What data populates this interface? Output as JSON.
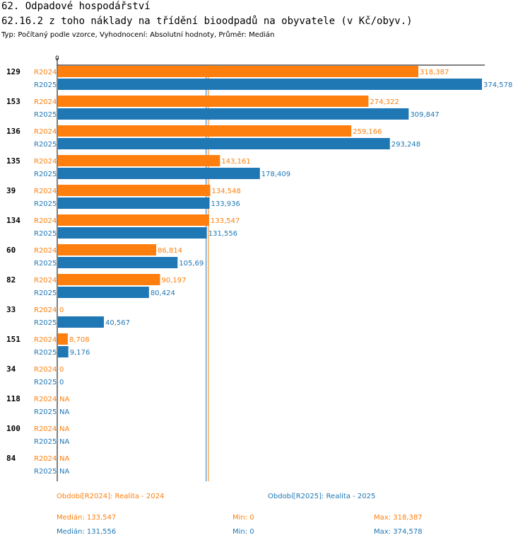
{
  "header": {
    "title": "62. Odpadové hospodářství",
    "subtitle": "62.16.2 z toho náklady na třídění bioodpadů na obyvatele (v Kč/obyv.)",
    "type_line": "Typ: Počítaný podle vzorce, Vyhodnocení: Absolutní hodnoty, Průměr: Medián"
  },
  "colors": {
    "r2024": "#ff7f0e",
    "r2025": "#1f77b4"
  },
  "chart_data": {
    "type": "bar",
    "orientation": "horizontal",
    "title": "62.16.2 z toho náklady na třídění bioodpadů na obyvatele (v Kč/obyv.)",
    "axis_zero_label": "0",
    "xlim": [
      0,
      374.578
    ],
    "categories": [
      "129",
      "153",
      "136",
      "135",
      "39",
      "134",
      "60",
      "82",
      "33",
      "151",
      "34",
      "118",
      "100",
      "84"
    ],
    "series": [
      {
        "name": "R2024",
        "values": [
          318.387,
          274.322,
          259.166,
          143.161,
          134.548,
          133.547,
          86.814,
          90.197,
          0,
          8.708,
          0,
          null,
          null,
          null
        ],
        "labels": [
          "318,387",
          "274,322",
          "259,166",
          "143,161",
          "134,548",
          "133,547",
          "86,814",
          "90,197",
          "0",
          "8,708",
          "0",
          "NA",
          "NA",
          "NA"
        ]
      },
      {
        "name": "R2025",
        "values": [
          374.578,
          309.847,
          293.248,
          178.409,
          133.936,
          131.556,
          105.69,
          80.424,
          40.567,
          9.176,
          0,
          null,
          null,
          null
        ],
        "labels": [
          "374,578",
          "309,847",
          "293,248",
          "178,409",
          "133,936",
          "131,556",
          "105,69",
          "80,424",
          "40,567",
          "9,176",
          "0",
          "NA",
          "NA",
          "NA"
        ]
      }
    ],
    "median_lines": [
      133.547,
      131.556
    ]
  },
  "legend": {
    "r2024_period": "Období[R2024]: Realita - 2024",
    "r2025_period": "Období[R2025]: Realita - 2025",
    "r2024_median": "Medián: 133,547",
    "r2024_min": "Min: 0",
    "r2024_max": "Max: 318,387",
    "r2025_median": "Medián: 131,556",
    "r2025_min": "Min: 0",
    "r2025_max": "Max: 374,578"
  }
}
